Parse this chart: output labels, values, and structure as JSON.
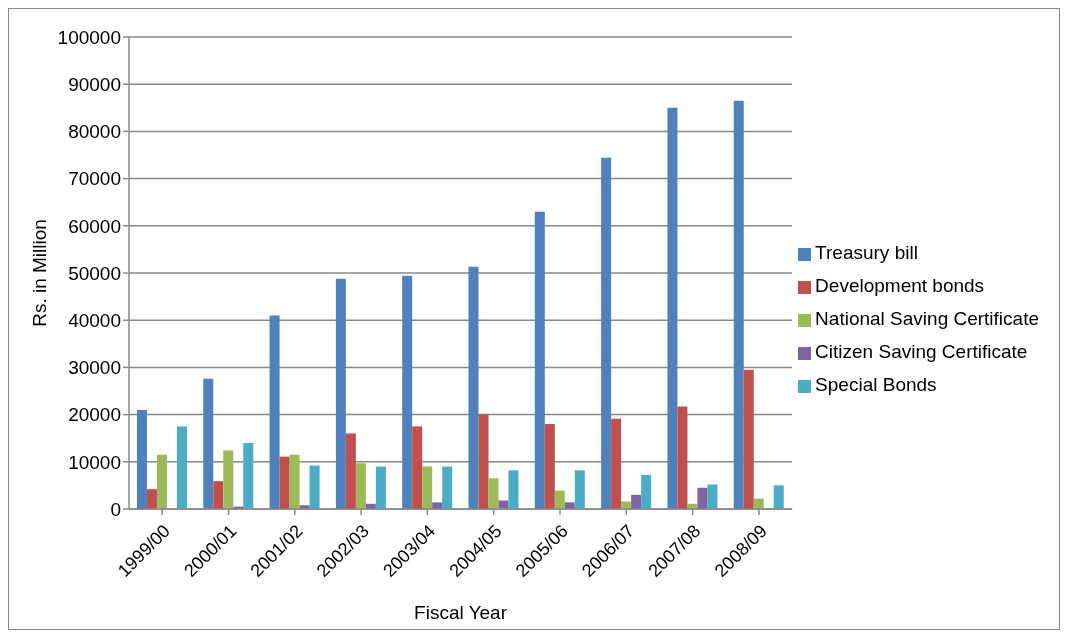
{
  "chart_data": {
    "type": "bar",
    "xlabel": "Fiscal Year",
    "ylabel": "Rs. in Million",
    "categories": [
      "1999/00",
      "2000/01",
      "2001/02",
      "2002/03",
      "2003/04",
      "2004/05",
      "2005/06",
      "2006/07",
      "2007/08",
      "2008/09"
    ],
    "series": [
      {
        "name": "Treasury bill",
        "color": "#4f81bd",
        "values": [
          21000,
          27600,
          41000,
          48800,
          49400,
          51300,
          63000,
          74400,
          85000,
          86500
        ]
      },
      {
        "name": "Development bonds",
        "color": "#c0504d",
        "values": [
          4200,
          5900,
          11100,
          16000,
          17500,
          20000,
          18000,
          19100,
          21700,
          29500
        ]
      },
      {
        "name": "National Saving Certificate",
        "color": "#9bbb59",
        "values": [
          11500,
          12400,
          11500,
          9700,
          9000,
          6500,
          3900,
          1600,
          1100,
          2200
        ]
      },
      {
        "name": "Citizen Saving Certificate",
        "color": "#8064a2",
        "values": [
          0,
          500,
          800,
          1100,
          1400,
          1800,
          1400,
          3000,
          4500,
          0
        ]
      },
      {
        "name": "Special Bonds",
        "color": "#4bacc6",
        "values": [
          17500,
          14000,
          9200,
          9000,
          9000,
          8200,
          8200,
          7200,
          5200,
          5000
        ]
      }
    ],
    "ylim": [
      0,
      100000
    ],
    "yticks": [
      0,
      10000,
      20000,
      30000,
      40000,
      50000,
      60000,
      70000,
      80000,
      90000,
      100000
    ],
    "grid": "y",
    "legend": "right"
  }
}
